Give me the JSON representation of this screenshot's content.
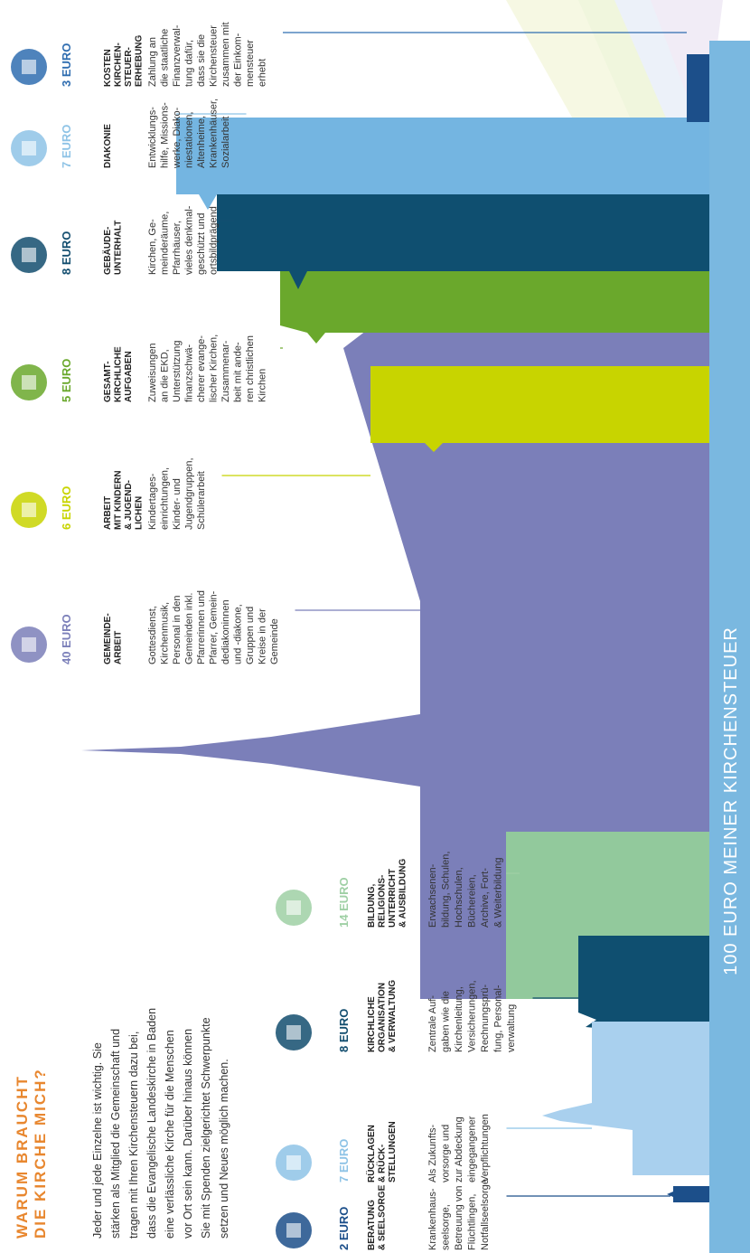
{
  "title": [
    "WARUM BRAUCHT",
    "DIE KIRCHE MICH?"
  ],
  "intro": [
    "Jeder und jede Einzelne ist wichtig. Sie",
    "stärken als Mitglied die Gemeinschaft und",
    "tragen mit Ihren Kirchensteuern dazu bei,",
    "dass die Evangelische Landeskirche in Baden",
    "eine verlässliche Kirche für die Menschen",
    "vor Ort sein kann. Darüber hinaus können",
    "Sie mit Spenden zielgerichtet Schwerpunkte",
    "setzen und Neues möglich machen."
  ],
  "footer": "100 EURO MEINER KIRCHENSTEUER",
  "items": [
    {
      "amount": "2 EURO",
      "heading": [
        "BERATUNG",
        "& SEELSORGE"
      ],
      "description": [
        "Krankenhaus-",
        "seelsorge,",
        "Betreuung von",
        "Flüchtlingen,",
        "Notfallseelsorge"
      ]
    },
    {
      "amount": "7 EURO",
      "heading": [
        "RÜCKLAGEN",
        "& RÜCK-",
        "STELLUNGEN"
      ],
      "description": [
        "Als Zukunfts-",
        "vorsorge und",
        "zur Abdeckung",
        "eingegangener",
        "Verpflichtungen"
      ]
    },
    {
      "amount": "8 EURO",
      "heading": [
        "KIRCHLICHE",
        "ORGANISATION",
        "& VERWALTUNG"
      ],
      "description": [
        "Zentrale Auf-",
        "gaben wie die",
        "Kirchenleitung,",
        "Versicherungen,",
        "Rechnungsprü-",
        "fung, Personal-",
        "verwaltung"
      ]
    },
    {
      "amount": "14 EURO",
      "heading": [
        "BILDUNG,",
        "RELIGIONS-",
        "UNTERRICHT",
        "& AUSBILDUNG"
      ],
      "description": [
        "Erwachsenen-",
        "bildung, Schulen,",
        "Hochschulen,",
        "Büchereien,",
        "Archive, Fort-",
        "& Weiterbildung"
      ]
    },
    {
      "amount": "40 EURO",
      "heading": [
        "GEMEINDE-",
        "ARBEIT"
      ],
      "description": [
        "Gottesdienst,",
        "Kirchenmusik,",
        "Personal in den",
        "Gemeinden inkl.",
        "Pfarrerinnen und",
        "Pfarrer, Gemein-",
        "dediakoninnen",
        "und -diakone,",
        "Gruppen und",
        "Kreise in der",
        "Gemeinde"
      ]
    },
    {
      "amount": "6 EURO",
      "heading": [
        "ARBEIT",
        "MIT KINDERN",
        "& JUGEND-",
        "LICHEN"
      ],
      "description": [
        "Kindertages-",
        "einrichtungen,",
        "Kinder- und",
        "Jugendgruppen,",
        "Schülerarbeit"
      ]
    },
    {
      "amount": "5 EURO",
      "heading": [
        "GESAMT-",
        "KIRCHLICHE",
        "AUFGABEN"
      ],
      "description": [
        "Zuweisungen",
        "an die EKD,",
        "Unterstützung",
        "finanzschwä-",
        "cherer evange-",
        "lischer Kirchen,",
        "Zusammenar-",
        "beit mit ande-",
        "ren christlichen",
        "Kirchen"
      ]
    },
    {
      "amount": "8 EURO",
      "heading": [
        "GEBÄUDE-",
        "UNTERHALT"
      ],
      "description": [
        "Kirchen, Ge-",
        "meinderäume,",
        "Pfarrhäuser,",
        "vieles denkmal-",
        "geschützt und",
        "ortsbildprägend"
      ]
    },
    {
      "amount": "7 EURO",
      "heading": [
        "DIAKONIE"
      ],
      "description": [
        "Entwicklungs-",
        "hilfe, Missions-",
        "werke, Diako-",
        "niestationen,",
        "Altenheime,",
        "Krankenhäuser,",
        "Sozialarbeit"
      ]
    },
    {
      "amount": "3 EURO",
      "heading": [
        "KOSTEN",
        "KIRCHEN-",
        "STEUER-",
        "ERHEBUNG"
      ],
      "description": [
        "Zahlung an",
        "die staatliche",
        "Finanzverwal-",
        "tung dafür,",
        "dass sie die",
        "Kirchensteuer",
        "zusammen mit",
        "der Einkom-",
        "mensteuer",
        "erhebt"
      ]
    }
  ]
}
